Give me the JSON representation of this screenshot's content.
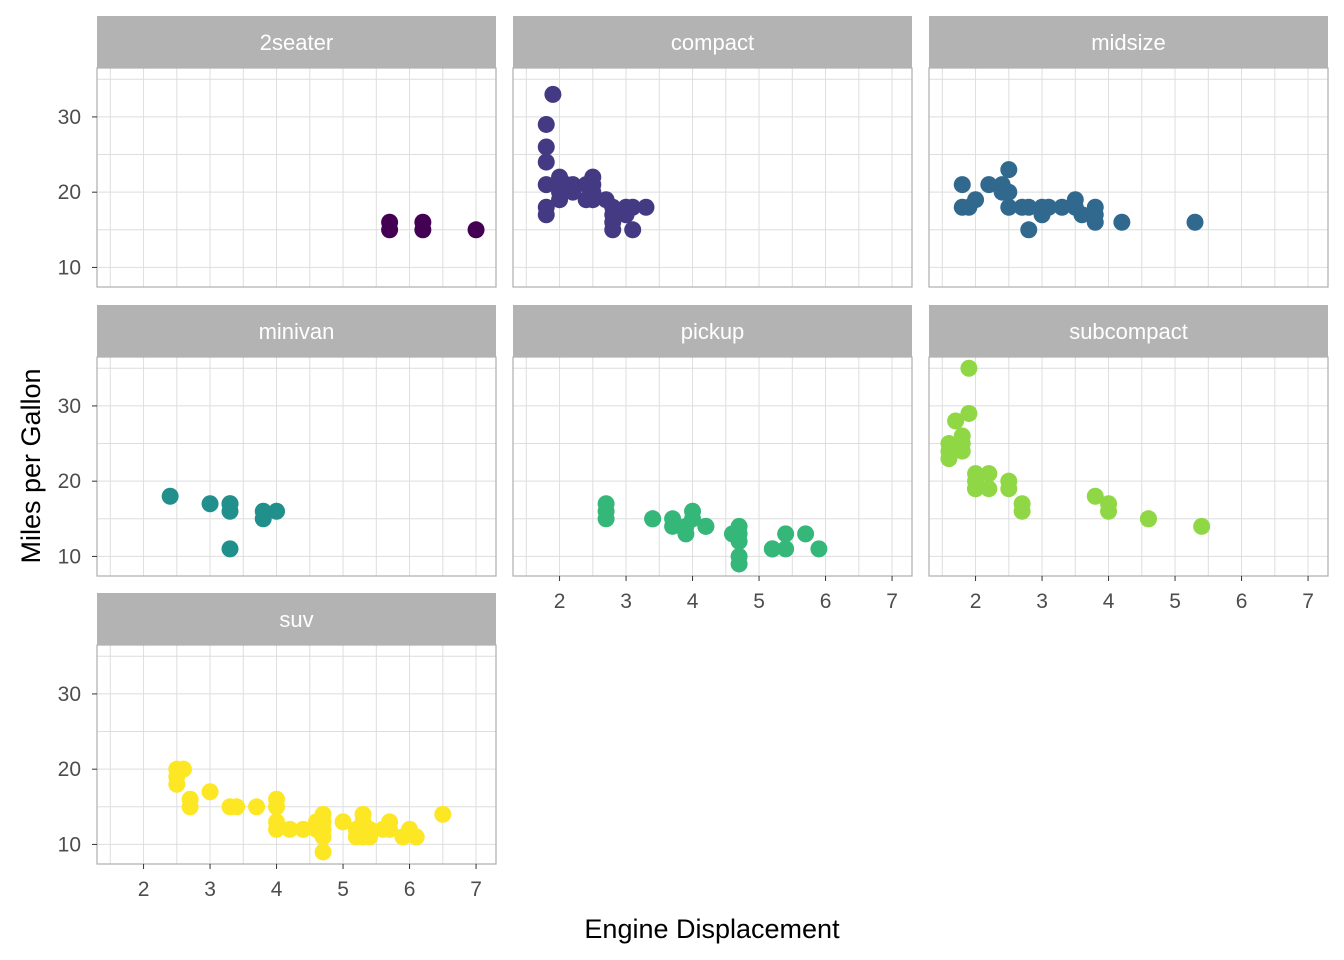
{
  "chart_data": {
    "type": "scatter",
    "facet_by": "class",
    "xlabel": "Engine Displacement",
    "ylabel": "Miles per Gallon",
    "xlim": [
      1.3,
      7.3
    ],
    "ylim": [
      7.4,
      36.5
    ],
    "x_ticks": [
      2,
      3,
      4,
      5,
      6,
      7
    ],
    "y_ticks": [
      10,
      20,
      30
    ],
    "grid": true,
    "legend": "none",
    "panels": [
      {
        "label": "2seater",
        "color": "#440154",
        "points": [
          [
            5.7,
            16
          ],
          [
            5.7,
            15
          ],
          [
            6.2,
            16
          ],
          [
            6.2,
            15
          ],
          [
            7.0,
            15
          ]
        ]
      },
      {
        "label": "compact",
        "color": "#443A83",
        "points": [
          [
            1.8,
            29
          ],
          [
            1.8,
            26
          ],
          [
            1.8,
            24
          ],
          [
            1.8,
            21
          ],
          [
            1.8,
            18
          ],
          [
            1.8,
            17
          ],
          [
            1.9,
            33
          ],
          [
            2.0,
            22
          ],
          [
            2.0,
            21
          ],
          [
            2.0,
            20
          ],
          [
            2.0,
            19
          ],
          [
            2.1,
            21
          ],
          [
            2.2,
            20
          ],
          [
            2.4,
            21
          ],
          [
            2.4,
            19
          ],
          [
            2.5,
            22
          ],
          [
            2.5,
            21
          ],
          [
            2.5,
            20
          ],
          [
            2.5,
            19
          ],
          [
            2.8,
            18
          ],
          [
            2.8,
            17
          ],
          [
            2.8,
            16
          ],
          [
            2.8,
            15
          ],
          [
            3.0,
            18
          ],
          [
            3.0,
            17
          ],
          [
            3.1,
            18
          ],
          [
            3.1,
            15
          ],
          [
            3.3,
            18
          ],
          [
            2.7,
            19
          ],
          [
            2.2,
            21
          ]
        ]
      },
      {
        "label": "midsize",
        "color": "#31688E",
        "points": [
          [
            1.8,
            21
          ],
          [
            1.8,
            18
          ],
          [
            2.0,
            19
          ],
          [
            2.2,
            21
          ],
          [
            2.4,
            21
          ],
          [
            2.4,
            20
          ],
          [
            2.5,
            23
          ],
          [
            2.5,
            20
          ],
          [
            2.5,
            18
          ],
          [
            2.8,
            18
          ],
          [
            2.8,
            15
          ],
          [
            3.0,
            18
          ],
          [
            3.0,
            17
          ],
          [
            3.1,
            18
          ],
          [
            3.3,
            18
          ],
          [
            3.5,
            19
          ],
          [
            3.5,
            18
          ],
          [
            3.6,
            17
          ],
          [
            3.8,
            17
          ],
          [
            3.8,
            16
          ],
          [
            3.8,
            18
          ],
          [
            4.2,
            16
          ],
          [
            5.3,
            16
          ],
          [
            2.7,
            18
          ],
          [
            1.9,
            18
          ]
        ]
      },
      {
        "label": "minivan",
        "color": "#21908C",
        "points": [
          [
            2.4,
            18
          ],
          [
            3.0,
            17
          ],
          [
            3.3,
            17
          ],
          [
            3.3,
            16
          ],
          [
            3.3,
            11
          ],
          [
            3.8,
            16
          ],
          [
            3.8,
            15
          ],
          [
            4.0,
            16
          ],
          [
            3.3,
            17
          ]
        ]
      },
      {
        "label": "pickup",
        "color": "#35B779",
        "points": [
          [
            2.7,
            15
          ],
          [
            2.7,
            16
          ],
          [
            2.7,
            17
          ],
          [
            3.4,
            15
          ],
          [
            3.4,
            15
          ],
          [
            3.7,
            15
          ],
          [
            3.7,
            14
          ],
          [
            3.9,
            13
          ],
          [
            3.9,
            14
          ],
          [
            4.0,
            16
          ],
          [
            4.0,
            15
          ],
          [
            4.2,
            14
          ],
          [
            4.2,
            14
          ],
          [
            4.7,
            14
          ],
          [
            4.7,
            13
          ],
          [
            4.7,
            12
          ],
          [
            4.7,
            9
          ],
          [
            4.7,
            10
          ],
          [
            5.2,
            11
          ],
          [
            5.2,
            11
          ],
          [
            5.4,
            13
          ],
          [
            5.4,
            11
          ],
          [
            5.7,
            13
          ],
          [
            5.9,
            11
          ],
          [
            4.6,
            13
          ]
        ]
      },
      {
        "label": "subcompact",
        "color": "#8FD744",
        "points": [
          [
            1.6,
            25
          ],
          [
            1.6,
            24
          ],
          [
            1.6,
            23
          ],
          [
            1.7,
            28
          ],
          [
            1.8,
            26
          ],
          [
            1.8,
            25
          ],
          [
            1.8,
            24
          ],
          [
            1.9,
            29
          ],
          [
            1.9,
            35
          ],
          [
            2.0,
            21
          ],
          [
            2.0,
            20
          ],
          [
            2.0,
            19
          ],
          [
            2.0,
            19
          ],
          [
            2.2,
            21
          ],
          [
            2.2,
            19
          ],
          [
            2.5,
            20
          ],
          [
            2.5,
            19
          ],
          [
            2.7,
            17
          ],
          [
            2.7,
            16
          ],
          [
            3.8,
            18
          ],
          [
            4.0,
            17
          ],
          [
            4.0,
            16
          ],
          [
            4.6,
            15
          ],
          [
            4.6,
            15
          ],
          [
            5.4,
            14
          ]
        ]
      },
      {
        "label": "suv",
        "color": "#FDE725",
        "points": [
          [
            2.5,
            20
          ],
          [
            2.5,
            19
          ],
          [
            2.5,
            18
          ],
          [
            2.6,
            20
          ],
          [
            2.7,
            16
          ],
          [
            2.7,
            15
          ],
          [
            3.0,
            17
          ],
          [
            3.3,
            15
          ],
          [
            3.4,
            15
          ],
          [
            3.7,
            15
          ],
          [
            4.0,
            16
          ],
          [
            4.0,
            15
          ],
          [
            4.0,
            13
          ],
          [
            4.0,
            12
          ],
          [
            4.2,
            12
          ],
          [
            4.4,
            12
          ],
          [
            4.6,
            12
          ],
          [
            4.7,
            14
          ],
          [
            4.7,
            13
          ],
          [
            4.7,
            12
          ],
          [
            4.7,
            11
          ],
          [
            4.7,
            9
          ],
          [
            5.0,
            13
          ],
          [
            5.2,
            11
          ],
          [
            5.3,
            14
          ],
          [
            5.3,
            13
          ],
          [
            5.3,
            11
          ],
          [
            5.4,
            12
          ],
          [
            5.4,
            11
          ],
          [
            5.7,
            13
          ],
          [
            5.7,
            12
          ],
          [
            5.9,
            11
          ],
          [
            6.0,
            12
          ],
          [
            6.1,
            11
          ],
          [
            6.5,
            14
          ],
          [
            4.6,
            13
          ],
          [
            5.6,
            12
          ],
          [
            5.2,
            12
          ]
        ]
      }
    ]
  }
}
